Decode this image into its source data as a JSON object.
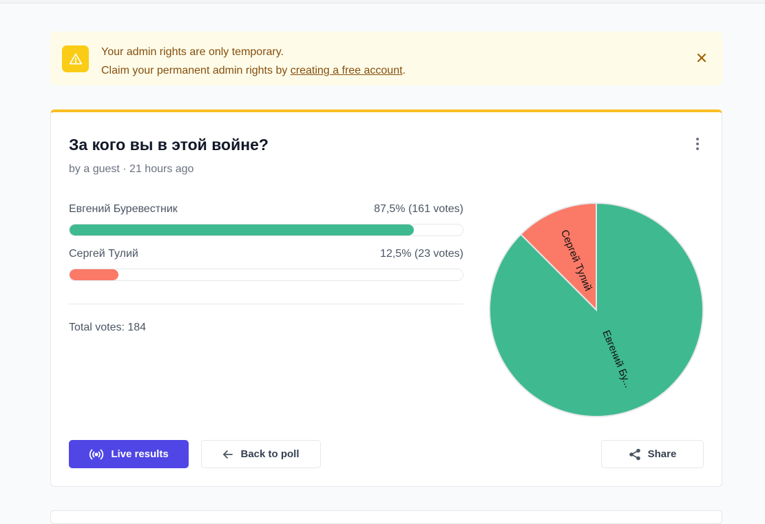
{
  "alert": {
    "line1": "Your admin rights are only temporary.",
    "line2_prefix": "Claim your permanent admin rights by ",
    "line2_link": "creating a free account",
    "line2_suffix": "."
  },
  "poll": {
    "title": "За кого вы в этой войне?",
    "byline": "by a guest · 21 hours ago",
    "options": [
      {
        "label": "Евгений Буревестник",
        "result": "87,5% (161 votes)",
        "percent": 87.5,
        "votes": 161,
        "color": "#3fb990"
      },
      {
        "label": "Сергей Тулий",
        "result": "12,5% (23 votes)",
        "percent": 12.5,
        "votes": 23,
        "color": "#fb7a67"
      }
    ],
    "total_votes": "Total votes: 184"
  },
  "chart_data": {
    "type": "pie",
    "slices": [
      {
        "label": "Евгений Бу...",
        "value": 161,
        "color": "#3fb990"
      },
      {
        "label": "Сергей Тулий",
        "value": 23,
        "color": "#fb7a67"
      }
    ]
  },
  "actions": {
    "live_results": "Live results",
    "back_to_poll": "Back to poll",
    "share": "Share"
  },
  "icons": {
    "alert": "warning-triangle-icon",
    "close": "close-icon",
    "menu": "kebab-menu-icon",
    "live": "broadcast-icon",
    "back": "arrow-left-icon",
    "share": "share-icon"
  }
}
